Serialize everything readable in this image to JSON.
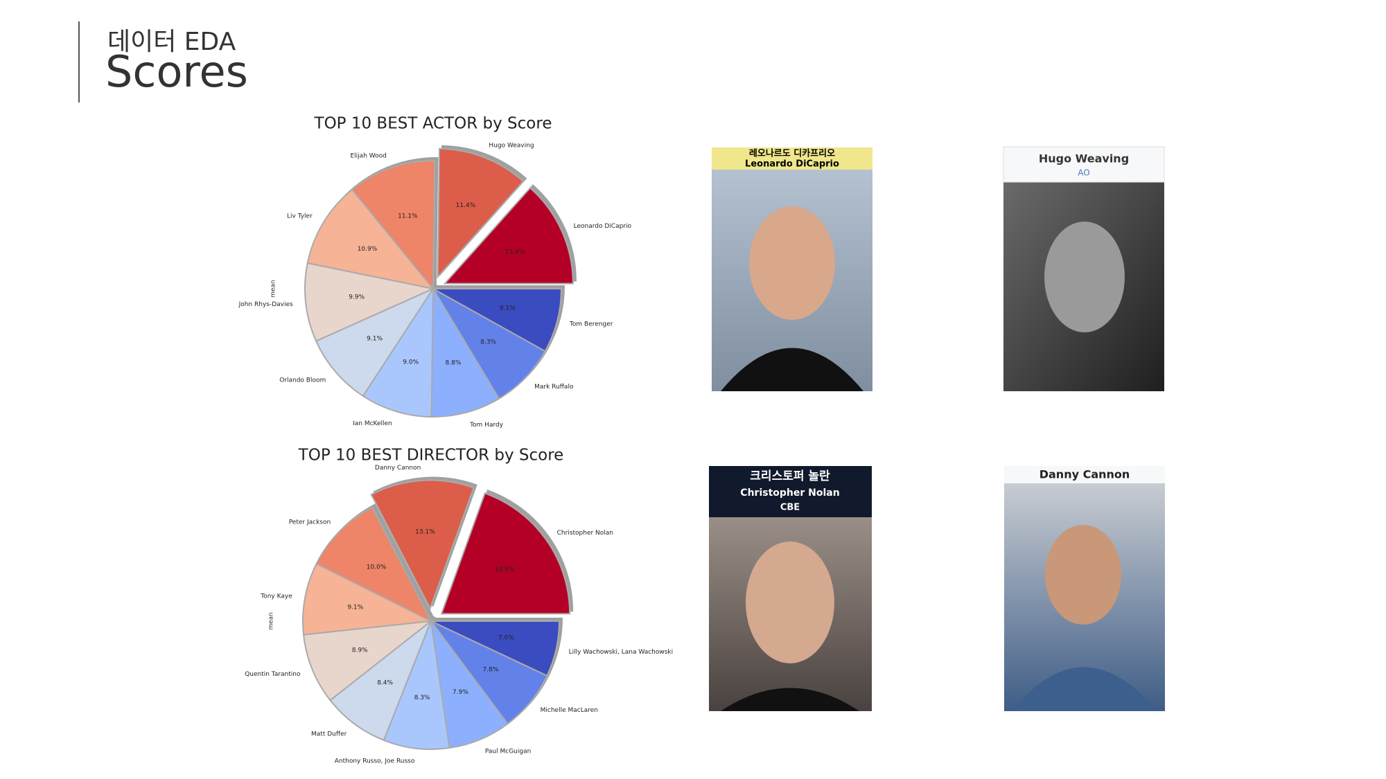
{
  "header": {
    "subtitle": "데이터 EDA",
    "title": "Scores"
  },
  "chart_data": [
    {
      "type": "pie",
      "title": "TOP 10 BEST ACTOR by Score",
      "ylabel": "mean",
      "categories": [
        "Leonardo DiCaprio",
        "Hugo Weaving",
        "Elijah Wood",
        "Liv Tyler",
        "John Rhys-Davies",
        "Orlando Bloom",
        "Ian McKellen",
        "Tom Hardy",
        "Mark Ruffalo",
        "Tom Berenger"
      ],
      "values": [
        13.4,
        11.4,
        11.1,
        10.9,
        9.9,
        9.1,
        9.0,
        8.8,
        8.3,
        8.1
      ],
      "value_labels": [
        "13.4%",
        "11.4%",
        "11.1%",
        "10.9%",
        "9.9%",
        "9.1%",
        "9.0%",
        "8.8%",
        "8.3%",
        "8.1%"
      ],
      "colors": [
        "#b40426",
        "#dc5d4a",
        "#ee8468",
        "#f6b396",
        "#e8d6cc",
        "#cdd9ec",
        "#aac7fd",
        "#8db0fe",
        "#6282ea",
        "#3b4cc0"
      ],
      "explode": [
        0.1,
        0.1,
        0,
        0,
        0,
        0,
        0,
        0,
        0,
        0
      ],
      "shadow": true
    },
    {
      "type": "pie",
      "title": "TOP 10 BEST DIRECTOR by Score",
      "ylabel": "mean",
      "categories": [
        "Christopher Nolan",
        "Danny Cannon",
        "Peter Jackson",
        "Tony Kaye",
        "Quentin Tarantino",
        "Matt Duffer",
        "Anthony Russo, Joe Russo",
        "Paul McGuigan",
        "Michelle MacLaren",
        "Lilly Wachowski, Lana Wachowski"
      ],
      "values": [
        19.5,
        13.1,
        10.0,
        9.1,
        8.9,
        8.4,
        8.3,
        7.9,
        7.8,
        7.0
      ],
      "value_labels": [
        "19.5%",
        "13.1%",
        "10.0%",
        "9.1%",
        "8.9%",
        "8.4%",
        "8.3%",
        "7.9%",
        "7.8%",
        "7.0%"
      ],
      "colors": [
        "#b40426",
        "#dc5d4a",
        "#ee8468",
        "#f6b396",
        "#e8d6cc",
        "#cdd9ec",
        "#aac7fd",
        "#8db0fe",
        "#6282ea",
        "#3b4cc0"
      ],
      "explode": [
        0.1,
        0.1,
        0,
        0,
        0,
        0,
        0,
        0,
        0,
        0
      ],
      "shadow": true
    }
  ],
  "photos": [
    {
      "caption_ko": "레오나르도 디카프리오",
      "caption_en": "Leonardo DiCaprio"
    },
    {
      "caption_en": "Hugo Weaving",
      "note": "AO"
    },
    {
      "caption_ko": "크리스토퍼 놀란",
      "caption_en": "Christopher Nolan",
      "note": "CBE"
    },
    {
      "caption_en": "Danny Cannon"
    }
  ]
}
